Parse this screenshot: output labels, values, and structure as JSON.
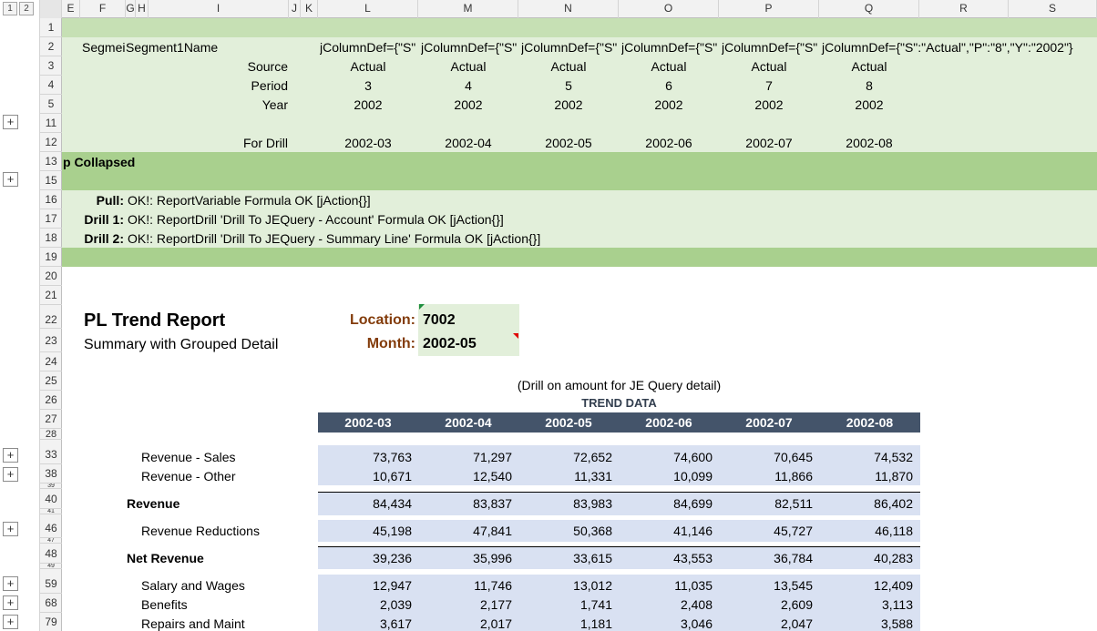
{
  "outline": {
    "levels": [
      "1",
      "2"
    ],
    "expand_symbol": "+"
  },
  "columns": [
    "E",
    "F",
    "G",
    "H",
    "I",
    "J",
    "K",
    "L",
    "M",
    "N",
    "O",
    "P",
    "Q",
    "R",
    "S"
  ],
  "rows": [
    "1",
    "2",
    "3",
    "4",
    "5",
    "11",
    "12",
    "13",
    "15",
    "16",
    "17",
    "18",
    "19",
    "20",
    "21",
    "22",
    "23",
    "24",
    "25",
    "26",
    "27",
    "28",
    "33",
    "38",
    "39",
    "40",
    "41",
    "46",
    "47",
    "48",
    "49",
    "59",
    "68",
    "79"
  ],
  "config": {
    "segment_label": "Segmei",
    "segment_name": "Segment1Name",
    "col_def_short": "jColumnDef={\"S\"",
    "col_def_full": "jColumnDef={\"S\":\"Actual\",\"P\":\"8\",\"Y\":\"2002\"}",
    "source_label": "Source",
    "period_label": "Period",
    "year_label": "Year",
    "drill_label": "For Drill",
    "sources": [
      "Actual",
      "Actual",
      "Actual",
      "Actual",
      "Actual",
      "Actual"
    ],
    "periods": [
      "3",
      "4",
      "5",
      "6",
      "7",
      "8"
    ],
    "years": [
      "2002",
      "2002",
      "2002",
      "2002",
      "2002",
      "2002"
    ],
    "drills": [
      "2002-03",
      "2002-04",
      "2002-05",
      "2002-06",
      "2002-07",
      "2002-08"
    ],
    "collapsed_text": "p Collapsed"
  },
  "status": {
    "pull_label": "Pull:",
    "pull_text": "OK!: ReportVariable Formula OK [jAction{}]",
    "drill1_label": "Drill 1:",
    "drill1_text": "OK!: ReportDrill 'Drill To JEQuery - Account' Formula OK [jAction{}]",
    "drill2_label": "Drill 2:",
    "drill2_text": "OK!: ReportDrill 'Drill To JEQuery - Summary Line' Formula OK [jAction{}]"
  },
  "report": {
    "title": "PL Trend Report",
    "subtitle": "Summary with Grouped Detail",
    "location_label": "Location:",
    "location_value": "7002",
    "month_label": "Month:",
    "month_value": "2002-05",
    "drill_note": "(Drill on amount for JE Query detail)",
    "trend_header": "TREND DATA",
    "periods": [
      "2002-03",
      "2002-04",
      "2002-05",
      "2002-06",
      "2002-07",
      "2002-08"
    ],
    "lines": [
      {
        "label": "Revenue - Sales",
        "values": [
          "73,763",
          "71,297",
          "72,652",
          "74,600",
          "70,645",
          "74,532"
        ]
      },
      {
        "label": "Revenue - Other",
        "values": [
          "10,671",
          "12,540",
          "11,331",
          "10,099",
          "11,866",
          "11,870"
        ]
      },
      {
        "label": "Revenue",
        "values": [
          "84,434",
          "83,837",
          "83,983",
          "84,699",
          "82,511",
          "86,402"
        ]
      },
      {
        "label": "Revenue Reductions",
        "values": [
          "45,198",
          "47,841",
          "50,368",
          "41,146",
          "45,727",
          "46,118"
        ]
      },
      {
        "label": "Net Revenue",
        "values": [
          "39,236",
          "35,996",
          "33,615",
          "43,553",
          "36,784",
          "40,283"
        ]
      },
      {
        "label": "Salary and Wages",
        "values": [
          "12,947",
          "11,746",
          "13,012",
          "11,035",
          "13,545",
          "12,409"
        ]
      },
      {
        "label": "Benefits",
        "values": [
          "2,039",
          "2,177",
          "1,741",
          "2,408",
          "2,609",
          "3,113"
        ]
      },
      {
        "label": "Repairs and Maint",
        "values": [
          "3,617",
          "2,017",
          "1,181",
          "3,046",
          "2,047",
          "3,588"
        ]
      }
    ]
  }
}
